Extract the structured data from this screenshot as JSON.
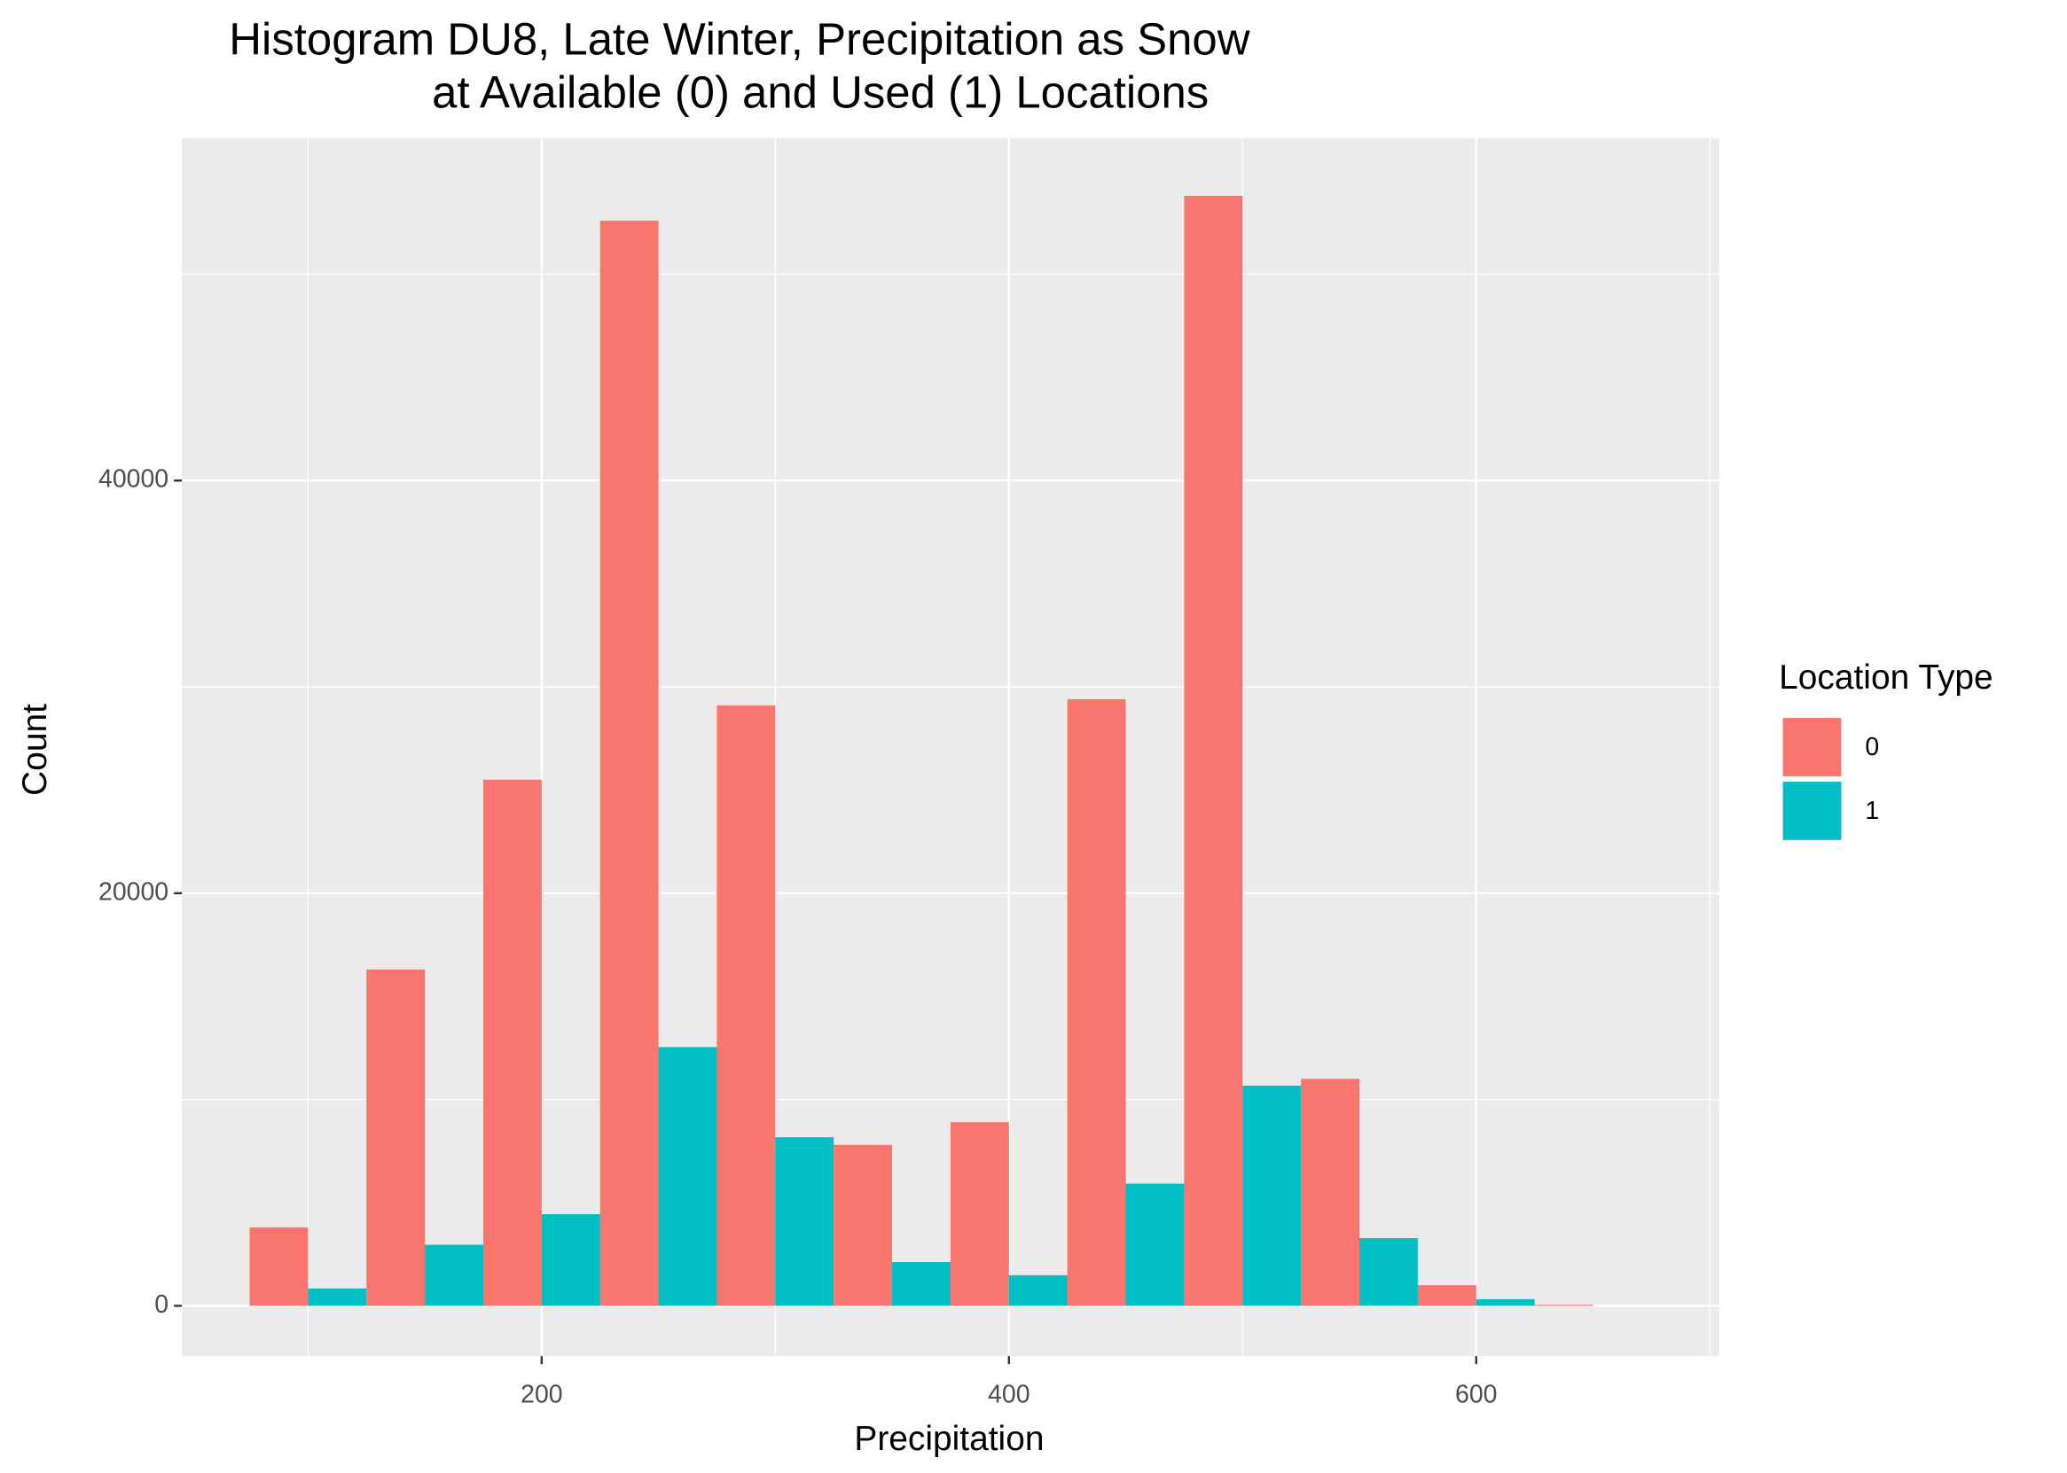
{
  "chart_data": {
    "type": "histogram",
    "title": [
      "Histogram DU8, Late Winter, Precipitation as Snow",
      "at Available (0) and Used (1) Locations"
    ],
    "x_label": "Precipitation",
    "y_label": "Count",
    "legend_title": "Location Type",
    "legend_position": "right",
    "grid": true,
    "bins": [
      75,
      125,
      175,
      225,
      275,
      325,
      375,
      425,
      475,
      525,
      575,
      625,
      675
    ],
    "series": [
      {
        "name": "0",
        "color": "#f8766d",
        "values": [
          3800,
          16300,
          25500,
          52600,
          29100,
          7800,
          8900,
          29400,
          53800,
          11000,
          1000,
          50
        ]
      },
      {
        "name": "1",
        "color": "#00bfc4",
        "values": [
          840,
          2960,
          4440,
          12540,
          8170,
          2120,
          1480,
          5920,
          10670,
          3280,
          320,
          0
        ]
      }
    ],
    "xlim": [
      46,
      704
    ],
    "ylim": [
      -2440,
      56600
    ],
    "xticks": [
      200,
      400,
      600
    ],
    "yticks": [
      0,
      20000,
      40000
    ],
    "x_minor_grid": [
      100,
      300,
      500,
      700
    ],
    "y_minor_grid": [
      10000,
      30000,
      50000
    ]
  }
}
